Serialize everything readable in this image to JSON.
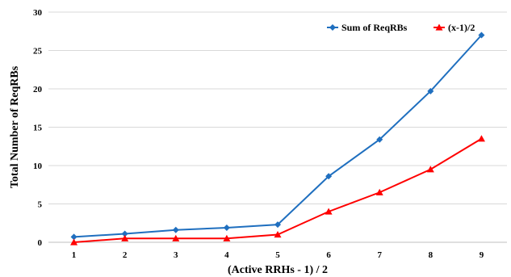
{
  "chart_data": {
    "type": "line",
    "title": "",
    "xlabel": "(Active RRHs - 1) / 2",
    "ylabel": "Total Number of ReqRBs",
    "x": [
      1,
      2,
      3,
      4,
      5,
      6,
      7,
      8,
      9
    ],
    "ylim": [
      0,
      30
    ],
    "yticks": [
      0,
      5,
      10,
      15,
      20,
      25,
      30
    ],
    "grid": "horizontal",
    "legend_position": "top-right",
    "series": [
      {
        "name": "Sum of ReqRBs",
        "color": "#1f6fbf",
        "marker": "diamond",
        "values": [
          0.7,
          1.1,
          1.6,
          1.9,
          2.3,
          8.6,
          13.4,
          19.7,
          27.0
        ]
      },
      {
        "name": "(x-1)/2",
        "color": "#ff0000",
        "marker": "triangle",
        "values": [
          0.0,
          0.5,
          0.5,
          0.5,
          1.0,
          4.0,
          6.5,
          9.5,
          13.5
        ]
      }
    ]
  }
}
